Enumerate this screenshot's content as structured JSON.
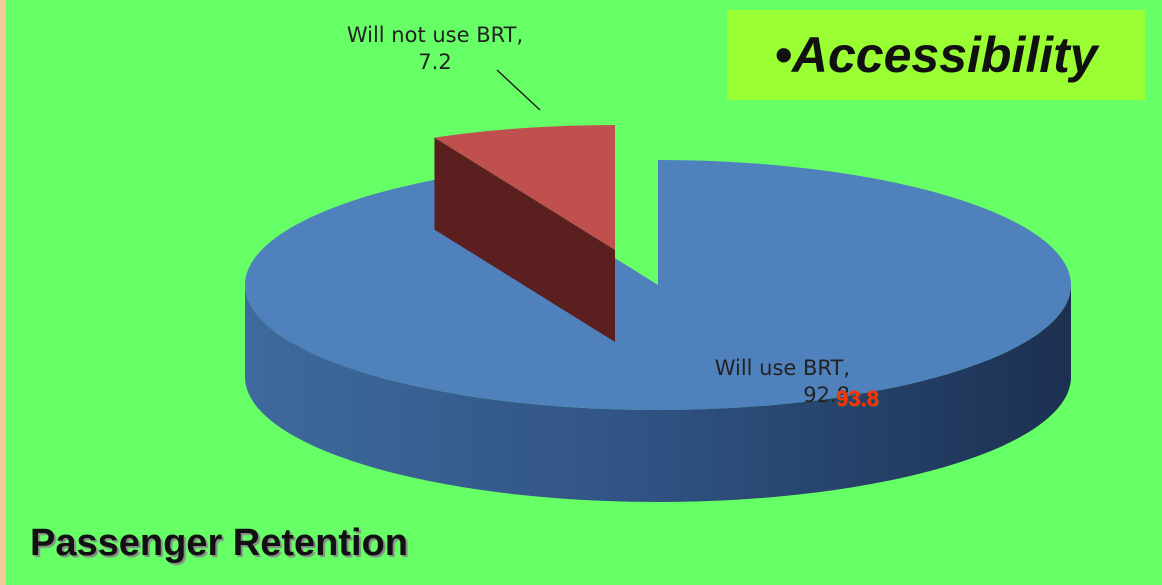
{
  "chart_data": {
    "type": "pie",
    "title": "•Accessibility",
    "subtitle": "Passenger Retention",
    "categories": [
      "Will not use BRT",
      "Will use BRT"
    ],
    "values": [
      7.2,
      92.8
    ],
    "value_labels": [
      "Will not use BRT, 7.2",
      "Will use BRT, 92.8"
    ],
    "colors": [
      "#c0504d",
      "#4f81bd"
    ],
    "annotations": [
      {
        "text": "93.8",
        "color": "#ff3300"
      }
    ]
  }
}
